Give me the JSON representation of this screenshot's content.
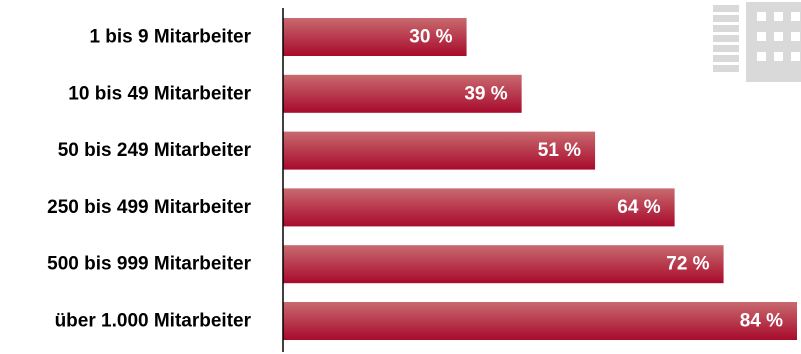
{
  "chart_data": {
    "type": "bar",
    "orientation": "horizontal",
    "categories": [
      "1 bis 9 Mitarbeiter",
      "10 bis 49 Mitarbeiter",
      "50 bis 249 Mitarbeiter",
      "250 bis 499 Mitarbeiter",
      "500 bis 999 Mitarbeiter",
      "über 1.000 Mitarbeiter"
    ],
    "values": [
      30,
      39,
      51,
      64,
      72,
      84
    ],
    "value_labels": [
      "30 %",
      "39 %",
      "51 %",
      "64 %",
      "72 %",
      "84 %"
    ],
    "unit": "%",
    "xlim": [
      0,
      84
    ],
    "grid": false,
    "legend": "none",
    "colors": {
      "bar_start": "#c86a6f",
      "bar_end": "#a80a2c",
      "axis": "#000000",
      "icon": "#d9d9d9"
    },
    "decoration": "building-icon"
  }
}
